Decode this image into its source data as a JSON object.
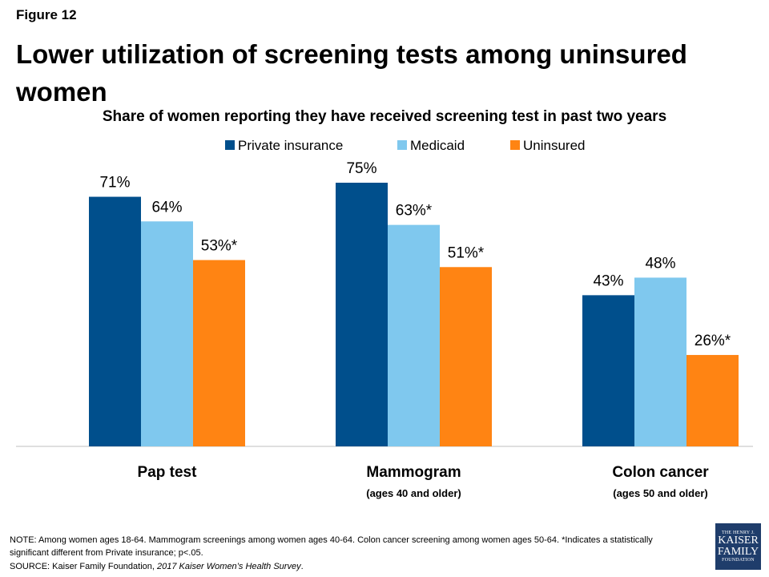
{
  "figure_label": "Figure 12",
  "title": "Lower utilization of screening tests among uninsured women",
  "subtitle": "Share of women reporting they have received screening test in past two years",
  "colors": {
    "Private insurance": "#004f8c",
    "Medicaid": "#7fc8ee",
    "Uninsured": "#ff8413",
    "axis": "#bfbfbf"
  },
  "chart_data": {
    "type": "bar",
    "categories": [
      "Pap test",
      "Mammogram",
      "Colon cancer"
    ],
    "category_sublabels": [
      "",
      "(ages 40 and older)",
      "(ages 50 and older)"
    ],
    "series": [
      {
        "name": "Private insurance",
        "values": [
          71,
          75,
          43
        ],
        "labels": [
          "71%",
          "75%",
          "43%"
        ]
      },
      {
        "name": "Medicaid",
        "values": [
          64,
          63,
          48
        ],
        "labels": [
          "64%",
          "63%*",
          "48%"
        ]
      },
      {
        "name": "Uninsured",
        "values": [
          53,
          51,
          26
        ],
        "labels": [
          "53%*",
          "51%*",
          "26%*"
        ]
      }
    ],
    "ylim": [
      0,
      75
    ],
    "legend_position": "top-center",
    "grid": false
  },
  "footer": {
    "note": "NOTE:  Among women ages 18-64. Mammogram screenings among women  ages 40-64. Colon cancer screening among women  ages 50-64. *Indicates a statistically significant different from Private insurance; p<.05.",
    "source_prefix": "SOURCE:  Kaiser Family Foundation, ",
    "source_title": "2017 Kaiser Women’s Health Survey",
    "source_suffix": "."
  },
  "logo": {
    "line1": "THE HENRY J.",
    "line2": "KAISER",
    "line3": "FAMILY",
    "line4": "FOUNDATION"
  }
}
